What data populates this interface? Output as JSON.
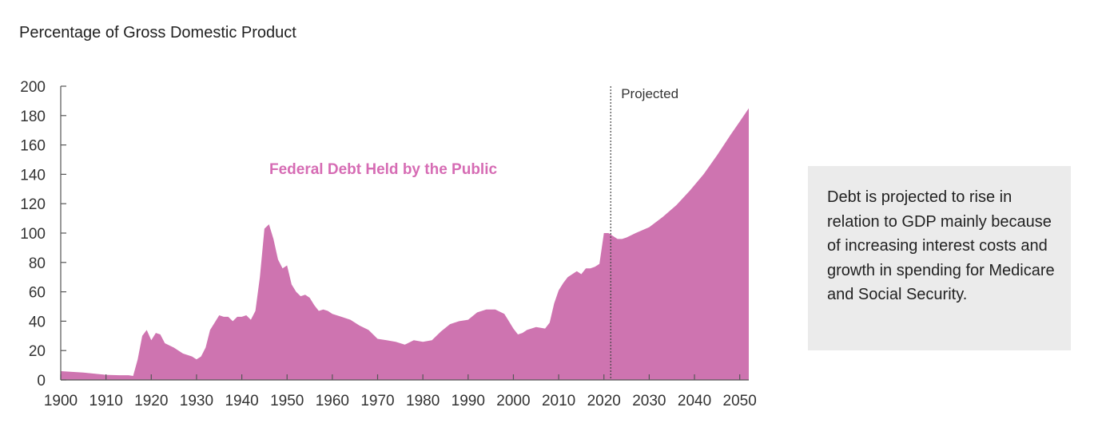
{
  "header": {
    "title": "Percentage of Gross Domestic Product"
  },
  "note": {
    "text": "Debt is projected to rise in relation to GDP mainly because of increasing interest costs and growth in spending for Medicare and Social Security."
  },
  "colors": {
    "area": "#ce74b0",
    "label": "#d66cb4",
    "axis": "#555555"
  },
  "chart_data": {
    "type": "area",
    "title": "",
    "xlabel": "",
    "ylabel": "Percentage of Gross Domestic Product",
    "series": [
      {
        "name": "Federal Debt Held by the Public",
        "x": [
          1900,
          1905,
          1910,
          1913,
          1915,
          1916,
          1917,
          1918,
          1919,
          1920,
          1921,
          1922,
          1923,
          1925,
          1927,
          1929,
          1930,
          1931,
          1932,
          1933,
          1934,
          1935,
          1936,
          1937,
          1938,
          1939,
          1940,
          1941,
          1942,
          1943,
          1944,
          1945,
          1946,
          1947,
          1948,
          1949,
          1950,
          1951,
          1952,
          1953,
          1954,
          1955,
          1956,
          1957,
          1958,
          1959,
          1960,
          1962,
          1964,
          1966,
          1968,
          1970,
          1972,
          1974,
          1976,
          1978,
          1980,
          1982,
          1984,
          1986,
          1988,
          1990,
          1992,
          1994,
          1996,
          1998,
          2000,
          2001,
          2002,
          2003,
          2005,
          2007,
          2008,
          2009,
          2010,
          2011,
          2012,
          2013,
          2014,
          2015,
          2016,
          2017,
          2018,
          2019,
          2020,
          2021,
          2022,
          2023,
          2024,
          2025,
          2027,
          2030,
          2033,
          2036,
          2039,
          2042,
          2045,
          2048,
          2050,
          2052
        ],
        "values": [
          6,
          5,
          3.5,
          3.2,
          3.2,
          2.7,
          14,
          30,
          34,
          27,
          32,
          31,
          25,
          22,
          18,
          16,
          14,
          16,
          22,
          34,
          39,
          44,
          43,
          43,
          40,
          43,
          43,
          44,
          41,
          47,
          70,
          103,
          106,
          96,
          82,
          76,
          78,
          65,
          60,
          57,
          58,
          56,
          51,
          47,
          48,
          47,
          45,
          43,
          41,
          37,
          34,
          28,
          27,
          26,
          24,
          27,
          26,
          27,
          33,
          38,
          40,
          41,
          46,
          48,
          48,
          45,
          35,
          31,
          32,
          34,
          36,
          35,
          39,
          52,
          61,
          66,
          70,
          72,
          74,
          72,
          76,
          76,
          77,
          79,
          100,
          100,
          98,
          96,
          96,
          97,
          100,
          104,
          111,
          119,
          129,
          140,
          153,
          167,
          176,
          185
        ]
      }
    ],
    "xlim": [
      1900,
      2052
    ],
    "ylim": [
      0,
      200
    ],
    "xticks": [
      1900,
      1910,
      1920,
      1930,
      1940,
      1950,
      1960,
      1970,
      1980,
      1990,
      2000,
      2010,
      2020,
      2030,
      2040,
      2050
    ],
    "yticks": [
      0,
      20,
      40,
      60,
      80,
      100,
      120,
      140,
      160,
      180,
      200
    ],
    "annotations": [
      {
        "text": "Projected",
        "x": 2021.5
      },
      {
        "text": "Federal Debt Held by the Public",
        "x": 1966,
        "y": 145
      }
    ],
    "grid": false,
    "legend": "none"
  }
}
